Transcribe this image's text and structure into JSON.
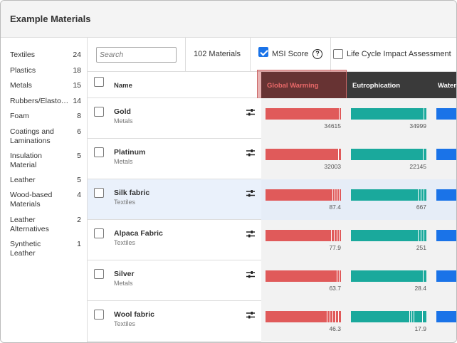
{
  "header": {
    "title": "Example Materials"
  },
  "colors": {
    "global_warming": "#e05a5a",
    "eutrophication": "#1aa99c",
    "water": "#1a73e8",
    "header_dark": "#3a3a3a",
    "highlight": "#c0392b"
  },
  "sidebar": {
    "categories": [
      {
        "label": "Textiles",
        "count": "24"
      },
      {
        "label": "Plastics",
        "count": "18"
      },
      {
        "label": "Metals",
        "count": "15"
      },
      {
        "label": "Rubbers/Elastomers",
        "count": "14"
      },
      {
        "label": "Foam",
        "count": "8"
      },
      {
        "label": "Coatings and Laminations",
        "count": "6"
      },
      {
        "label": "Insulation Material",
        "count": "5"
      },
      {
        "label": "Leather",
        "count": "5"
      },
      {
        "label": "Wood-based Materials",
        "count": "4"
      },
      {
        "label": "Leather Alternatives",
        "count": "2"
      },
      {
        "label": "Synthetic Leather",
        "count": "1"
      }
    ]
  },
  "toolbar": {
    "search_placeholder": "Search",
    "count_label": "102 Materials",
    "msi_label": "MSI Score",
    "msi_checked": true,
    "help_glyph": "?",
    "lca_label": "Life Cycle Impact Assessment",
    "lca_checked": false
  },
  "table": {
    "name_header": "Name",
    "metrics": [
      "Global Warming",
      "Eutrophication",
      "Water"
    ],
    "rows": [
      {
        "name": "Gold",
        "category": "Metals",
        "gw": "34615",
        "eu": "34999",
        "selected": false
      },
      {
        "name": "Platinum",
        "category": "Metals",
        "gw": "32003",
        "eu": "22145",
        "selected": false
      },
      {
        "name": "Silk fabric",
        "category": "Textiles",
        "gw": "87.4",
        "eu": "667",
        "selected": true
      },
      {
        "name": "Alpaca Fabric",
        "category": "Textiles",
        "gw": "77.9",
        "eu": "251",
        "selected": false
      },
      {
        "name": "Silver",
        "category": "Metals",
        "gw": "63.7",
        "eu": "28.4",
        "selected": false
      },
      {
        "name": "Wool fabric",
        "category": "Textiles",
        "gw": "46.3",
        "eu": "17.9",
        "selected": false
      }
    ]
  }
}
